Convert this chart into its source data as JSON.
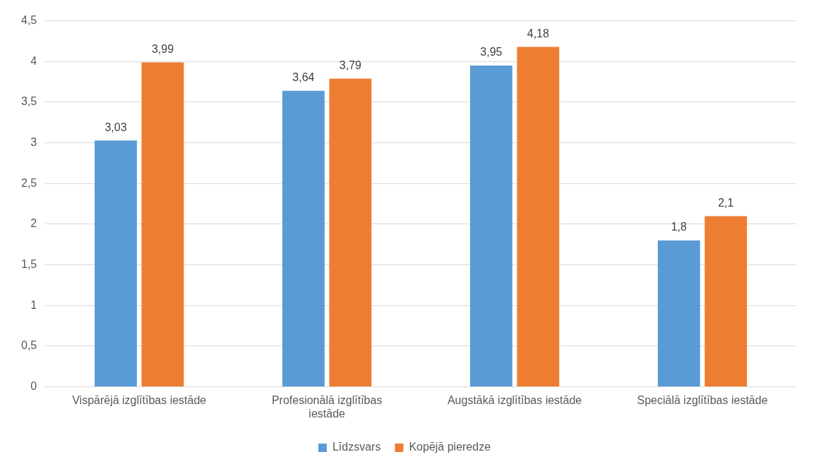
{
  "chart_data": {
    "type": "bar",
    "categories": [
      "Vispārējā izglītības iestāde",
      "Profesionālā izglītības iestāde",
      "Augstākā izglītības iestāde",
      "Speciālā izglītības iestāde"
    ],
    "series": [
      {
        "name": "Līdzsvars",
        "color": "#5b9bd5",
        "values": [
          3.03,
          3.64,
          3.95,
          1.8
        ],
        "value_labels": [
          "3,03",
          "3,64",
          "3,95",
          "1,8"
        ]
      },
      {
        "name": "Kopējā pieredze",
        "color": "#ed7d31",
        "values": [
          3.99,
          3.79,
          4.18,
          2.1
        ],
        "value_labels": [
          "3,99",
          "3,79",
          "4,18",
          "2,1"
        ]
      }
    ],
    "ylim": [
      0,
      4.5
    ],
    "yticks": [
      0,
      {
        "value": 0.5,
        "label": "0,5"
      },
      1,
      {
        "value": 1.5,
        "label": "1,5"
      },
      2,
      {
        "value": 2.5,
        "label": "2,5"
      },
      3,
      {
        "value": 3.5,
        "label": "3,5"
      },
      4,
      {
        "value": 4.5,
        "label": "4,5"
      }
    ],
    "grid": "y",
    "legend": "bottom"
  }
}
